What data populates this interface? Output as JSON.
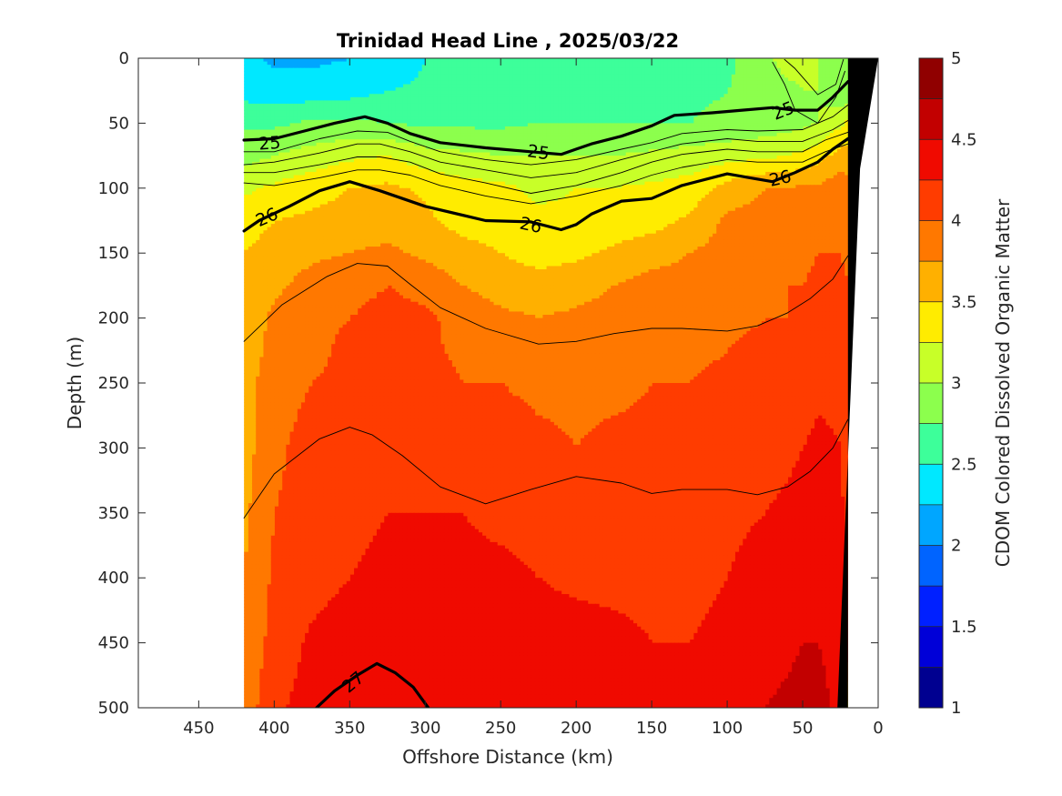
{
  "chart_data": {
    "type": "heatmap",
    "subtype": "filled-contour section with overlaid density contours",
    "title": "Trinidad Head Line , 2025/03/22",
    "xlabel": "Offshore Distance (km)",
    "ylabel": "Depth (m)",
    "colorbar_label": "CDOM Colored Dissolved Organic Matter",
    "x_reversed": true,
    "y_reversed": true,
    "xlim": [
      0,
      490
    ],
    "ylim": [
      0,
      500
    ],
    "x_ticks": [
      450,
      400,
      350,
      300,
      250,
      200,
      150,
      100,
      50,
      0
    ],
    "y_ticks": [
      0,
      50,
      100,
      150,
      200,
      250,
      300,
      350,
      400,
      450,
      500
    ],
    "colorbar": {
      "min": 1,
      "max": 5,
      "step": 0.25,
      "tick_values": [
        1,
        1.5,
        2,
        2.5,
        3,
        3.5,
        4,
        4.5,
        5
      ],
      "tick_labels": [
        "1",
        "1.5",
        "2",
        "2.5",
        "3",
        "3.5",
        "4",
        "4.5",
        "5"
      ],
      "colors": [
        "#000090",
        "#0000d8",
        "#0020ff",
        "#0064ff",
        "#00a6ff",
        "#00e8ff",
        "#3dff9a",
        "#8cff4d",
        "#c8ff28",
        "#ffec00",
        "#ffb000",
        "#ff7800",
        "#ff3c00",
        "#f00a00",
        "#c20000",
        "#900000"
      ]
    },
    "data_extent_km": [
      20,
      420
    ],
    "bottom": {
      "color": "#000000",
      "profile": [
        {
          "x": 20,
          "depth": 500
        },
        {
          "x": 27,
          "depth": 500
        },
        {
          "x": 12,
          "depth": 85
        },
        {
          "x": 0,
          "depth": 0
        },
        {
          "x": 20,
          "depth": 0
        }
      ]
    },
    "field": {
      "x": [
        20,
        25,
        40,
        50,
        60,
        75,
        100,
        125,
        150,
        175,
        200,
        225,
        250,
        275,
        300,
        325,
        350,
        375,
        400,
        420
      ],
      "depth": [
        0,
        25,
        50,
        75,
        100,
        125,
        150,
        175,
        200,
        225,
        250,
        300,
        350,
        400,
        450,
        500
      ],
      "cdom_by_depth": [
        [
          2.8,
          2.75,
          3.0,
          3.05,
          3.1,
          2.95,
          2.7,
          2.7,
          2.65,
          2.6,
          2.55,
          2.55,
          2.6,
          2.55,
          2.5,
          2.3,
          2.25,
          2.2,
          2.2,
          2.3
        ],
        [
          2.85,
          2.8,
          3.0,
          3.0,
          2.95,
          2.85,
          2.75,
          2.7,
          2.65,
          2.6,
          2.6,
          2.6,
          2.6,
          2.55,
          2.55,
          2.5,
          2.4,
          2.35,
          2.35,
          2.4
        ],
        [
          3.3,
          3.2,
          3.0,
          2.95,
          2.9,
          2.85,
          2.8,
          2.75,
          2.75,
          2.75,
          2.75,
          2.75,
          2.7,
          2.7,
          2.7,
          2.75,
          2.8,
          2.8,
          2.7,
          2.7
        ],
        [
          3.6,
          3.6,
          3.4,
          3.3,
          3.25,
          3.2,
          3.15,
          3.1,
          3.05,
          3.0,
          3.0,
          3.0,
          3.0,
          3.05,
          3.1,
          3.25,
          3.2,
          3.1,
          3.0,
          2.9
        ],
        [
          3.85,
          3.9,
          3.8,
          3.8,
          3.75,
          3.75,
          3.6,
          3.35,
          3.3,
          3.25,
          3.25,
          3.2,
          3.3,
          3.35,
          3.45,
          3.55,
          3.5,
          3.4,
          3.3,
          3.2
        ],
        [
          3.9,
          3.95,
          3.95,
          3.9,
          3.9,
          3.85,
          3.8,
          3.55,
          3.4,
          3.35,
          3.3,
          3.3,
          3.35,
          3.4,
          3.55,
          3.65,
          3.6,
          3.55,
          3.5,
          3.4
        ],
        [
          3.95,
          4.0,
          4.0,
          3.95,
          3.95,
          3.9,
          3.85,
          3.75,
          3.65,
          3.55,
          3.45,
          3.4,
          3.5,
          3.6,
          3.7,
          3.8,
          3.75,
          3.7,
          3.6,
          3.5
        ],
        [
          4.0,
          4.05,
          4.05,
          4.0,
          4.0,
          3.95,
          3.9,
          3.85,
          3.85,
          3.75,
          3.65,
          3.6,
          3.65,
          3.75,
          3.9,
          4.0,
          3.9,
          3.85,
          3.7,
          3.6
        ],
        [
          4.0,
          4.1,
          4.1,
          4.05,
          4.0,
          4.0,
          3.95,
          3.9,
          3.9,
          3.85,
          3.8,
          3.75,
          3.8,
          3.9,
          4.05,
          4.1,
          4.0,
          3.95,
          3.8,
          3.6
        ],
        [
          4.0,
          4.15,
          4.15,
          4.1,
          4.05,
          4.05,
          4.0,
          3.95,
          3.95,
          3.9,
          3.9,
          3.85,
          3.9,
          3.95,
          4.05,
          4.1,
          4.05,
          3.95,
          3.85,
          3.6
        ],
        [
          4.05,
          4.2,
          4.2,
          4.15,
          4.1,
          4.1,
          4.05,
          4.0,
          4.0,
          3.95,
          3.95,
          3.95,
          4.0,
          4.0,
          4.1,
          4.15,
          4.05,
          4.0,
          3.9,
          3.65
        ],
        [
          4.1,
          4.25,
          4.3,
          4.25,
          4.2,
          4.15,
          4.1,
          4.1,
          4.05,
          4.05,
          4.0,
          4.05,
          4.1,
          4.15,
          4.2,
          4.2,
          4.15,
          4.1,
          3.95,
          3.65
        ],
        [
          4.15,
          4.3,
          4.4,
          4.35,
          4.3,
          4.25,
          4.2,
          4.15,
          4.15,
          4.1,
          4.1,
          4.15,
          4.2,
          4.25,
          4.25,
          4.25,
          4.2,
          4.1,
          4.0,
          3.7
        ],
        [
          4.2,
          4.35,
          4.45,
          4.4,
          4.4,
          4.35,
          4.25,
          4.2,
          4.2,
          4.2,
          4.2,
          4.25,
          4.3,
          4.3,
          4.3,
          4.3,
          4.25,
          4.15,
          4.05,
          3.75
        ],
        [
          4.2,
          4.4,
          4.5,
          4.5,
          4.45,
          4.4,
          4.3,
          4.25,
          4.25,
          4.3,
          4.35,
          4.35,
          4.35,
          4.35,
          4.4,
          4.45,
          4.4,
          4.3,
          4.1,
          3.8
        ],
        [
          3.1,
          4.4,
          4.6,
          4.6,
          4.55,
          4.5,
          4.4,
          4.3,
          4.35,
          4.4,
          4.4,
          4.4,
          4.45,
          4.45,
          4.45,
          4.5,
          4.45,
          4.35,
          4.2,
          3.85
        ]
      ]
    },
    "density_contours": [
      {
        "level": "24.6",
        "style": "thin",
        "points": [
          [
            23,
            1
          ],
          [
            28,
            20
          ],
          [
            40,
            28
          ],
          [
            55,
            8
          ],
          [
            62,
            1
          ]
        ]
      },
      {
        "level": "24.8",
        "style": "thin",
        "points": [
          [
            22,
            10
          ],
          [
            28,
            30
          ],
          [
            40,
            50
          ],
          [
            55,
            40
          ],
          [
            62,
            20
          ],
          [
            70,
            3
          ]
        ]
      },
      {
        "level": "25",
        "style": "bold",
        "labeled": true,
        "points": [
          [
            20,
            18
          ],
          [
            30,
            30
          ],
          [
            40,
            40
          ],
          [
            55,
            40
          ],
          [
            70,
            38
          ],
          [
            90,
            40
          ],
          [
            110,
            42
          ],
          [
            135,
            44
          ],
          [
            150,
            52
          ],
          [
            170,
            60
          ],
          [
            190,
            66
          ],
          [
            210,
            74
          ],
          [
            230,
            72
          ],
          [
            260,
            69
          ],
          [
            290,
            65
          ],
          [
            310,
            58
          ],
          [
            325,
            50
          ],
          [
            340,
            45
          ],
          [
            360,
            50
          ],
          [
            380,
            56
          ],
          [
            400,
            62
          ],
          [
            420,
            63
          ]
        ]
      },
      {
        "level": "25.2",
        "style": "thin",
        "points": [
          [
            20,
            36
          ],
          [
            30,
            45
          ],
          [
            50,
            55
          ],
          [
            80,
            56
          ],
          [
            100,
            55
          ],
          [
            130,
            58
          ],
          [
            150,
            65
          ],
          [
            170,
            70
          ],
          [
            200,
            78
          ],
          [
            230,
            82
          ],
          [
            260,
            78
          ],
          [
            290,
            72
          ],
          [
            310,
            64
          ],
          [
            325,
            57
          ],
          [
            345,
            56
          ],
          [
            370,
            62
          ],
          [
            400,
            72
          ],
          [
            420,
            72
          ]
        ]
      },
      {
        "level": "25.4",
        "style": "thin",
        "points": [
          [
            20,
            48
          ],
          [
            30,
            55
          ],
          [
            50,
            64
          ],
          [
            80,
            64
          ],
          [
            100,
            62
          ],
          [
            130,
            66
          ],
          [
            150,
            72
          ],
          [
            170,
            78
          ],
          [
            200,
            88
          ],
          [
            230,
            92
          ],
          [
            260,
            86
          ],
          [
            290,
            80
          ],
          [
            310,
            72
          ],
          [
            330,
            66
          ],
          [
            345,
            66
          ],
          [
            370,
            73
          ],
          [
            400,
            80
          ],
          [
            420,
            82
          ]
        ]
      },
      {
        "level": "25.6",
        "style": "thin",
        "points": [
          [
            20,
            57
          ],
          [
            35,
            63
          ],
          [
            50,
            72
          ],
          [
            80,
            72
          ],
          [
            100,
            70
          ],
          [
            130,
            74
          ],
          [
            150,
            80
          ],
          [
            170,
            88
          ],
          [
            200,
            98
          ],
          [
            230,
            104
          ],
          [
            260,
            96
          ],
          [
            290,
            89
          ],
          [
            310,
            80
          ],
          [
            330,
            76
          ],
          [
            345,
            76
          ],
          [
            370,
            82
          ],
          [
            400,
            88
          ],
          [
            420,
            88
          ]
        ]
      },
      {
        "level": "25.8",
        "style": "thin",
        "points": [
          [
            20,
            66
          ],
          [
            35,
            72
          ],
          [
            50,
            80
          ],
          [
            80,
            80
          ],
          [
            100,
            78
          ],
          [
            130,
            84
          ],
          [
            150,
            90
          ],
          [
            170,
            98
          ],
          [
            200,
            106
          ],
          [
            230,
            112
          ],
          [
            260,
            106
          ],
          [
            290,
            98
          ],
          [
            310,
            90
          ],
          [
            330,
            86
          ],
          [
            345,
            86
          ],
          [
            370,
            92
          ],
          [
            400,
            98
          ],
          [
            420,
            96
          ]
        ]
      },
      {
        "level": "26",
        "style": "bold",
        "labeled": true,
        "points": [
          [
            20,
            62
          ],
          [
            30,
            70
          ],
          [
            40,
            80
          ],
          [
            55,
            88
          ],
          [
            70,
            95
          ],
          [
            85,
            92
          ],
          [
            100,
            89
          ],
          [
            130,
            98
          ],
          [
            150,
            108
          ],
          [
            170,
            110
          ],
          [
            190,
            120
          ],
          [
            200,
            128
          ],
          [
            210,
            132
          ],
          [
            230,
            126
          ],
          [
            260,
            125
          ],
          [
            300,
            114
          ],
          [
            330,
            102
          ],
          [
            350,
            95
          ],
          [
            370,
            102
          ],
          [
            390,
            114
          ],
          [
            410,
            125
          ],
          [
            420,
            133
          ]
        ]
      },
      {
        "level": "26.2",
        "style": "thin",
        "points": [
          [
            20,
            152
          ],
          [
            30,
            170
          ],
          [
            45,
            185
          ],
          [
            60,
            196
          ],
          [
            80,
            206
          ],
          [
            100,
            210
          ],
          [
            130,
            208
          ],
          [
            150,
            208
          ],
          [
            175,
            212
          ],
          [
            200,
            218
          ],
          [
            225,
            220
          ],
          [
            260,
            208
          ],
          [
            290,
            192
          ],
          [
            310,
            174
          ],
          [
            325,
            160
          ],
          [
            345,
            158
          ],
          [
            365,
            168
          ],
          [
            395,
            190
          ],
          [
            420,
            218
          ]
        ]
      },
      {
        "level": "26.4",
        "style": "thin",
        "points": [
          [
            20,
            278
          ],
          [
            30,
            300
          ],
          [
            45,
            318
          ],
          [
            60,
            330
          ],
          [
            80,
            336
          ],
          [
            100,
            332
          ],
          [
            130,
            332
          ],
          [
            150,
            335
          ],
          [
            170,
            327
          ],
          [
            200,
            322
          ],
          [
            230,
            332
          ],
          [
            260,
            343
          ],
          [
            290,
            330
          ],
          [
            315,
            306
          ],
          [
            335,
            290
          ],
          [
            350,
            284
          ],
          [
            370,
            293
          ],
          [
            400,
            320
          ],
          [
            420,
            354
          ]
        ]
      },
      {
        "level": "27",
        "style": "bold",
        "labeled": true,
        "points": [
          [
            298,
            500
          ],
          [
            308,
            484
          ],
          [
            320,
            473
          ],
          [
            332,
            466
          ],
          [
            345,
            475
          ],
          [
            360,
            487
          ],
          [
            372,
            500
          ]
        ]
      }
    ],
    "contour_labels": [
      {
        "text": "25",
        "x": 63,
        "depth": 40,
        "angle": -22
      },
      {
        "text": "25",
        "x": 225,
        "depth": 72,
        "angle": 8
      },
      {
        "text": "25",
        "x": 403,
        "depth": 65,
        "angle": -4
      },
      {
        "text": "26",
        "x": 65,
        "depth": 92,
        "angle": -13
      },
      {
        "text": "26",
        "x": 230,
        "depth": 128,
        "angle": 12
      },
      {
        "text": "26",
        "x": 405,
        "depth": 122,
        "angle": -24
      },
      {
        "text": "27",
        "x": 348,
        "depth": 480,
        "angle": -40
      }
    ]
  }
}
